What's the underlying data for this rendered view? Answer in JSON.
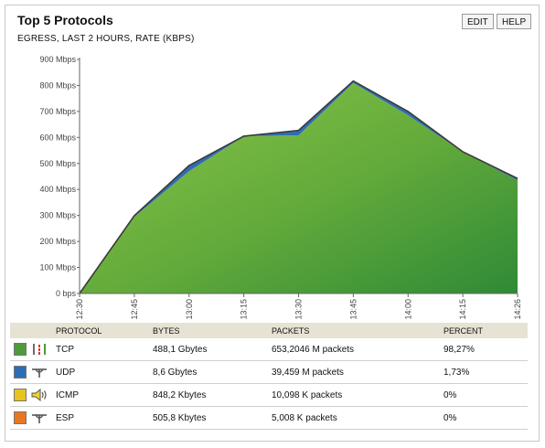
{
  "header": {
    "title": "Top 5 Protocols",
    "subtitle": "EGRESS, LAST 2 HOURS, RATE (KBPS)",
    "edit_label": "EDIT",
    "help_label": "HELP"
  },
  "chart_data": {
    "type": "area",
    "title": "Top 5 Protocols",
    "subtitle": "EGRESS, LAST 2 HOURS, RATE (KBPS)",
    "x": [
      "12:30",
      "12:45",
      "13:00",
      "13:15",
      "13:30",
      "13:45",
      "14:00",
      "14:15",
      "14:26"
    ],
    "ylim": [
      0,
      900
    ],
    "yticks": [
      0,
      100,
      200,
      300,
      400,
      500,
      600,
      700,
      800,
      900
    ],
    "ytick_labels": [
      "0 bps",
      "100 Mbps",
      "200 Mbps",
      "300 Mbps",
      "400 Mbps",
      "500 Mbps",
      "600 Mbps",
      "700 Mbps",
      "800 Mbps",
      "900 Mbps"
    ],
    "stacked": true,
    "grid": false,
    "series": [
      {
        "name": "TCP",
        "color": "#5a9e33",
        "values": [
          0,
          295,
          470,
          605,
          608,
          810,
          685,
          545,
          435
        ]
      },
      {
        "name": "UDP",
        "color": "#2f6db3",
        "values": [
          0,
          4,
          20,
          0,
          17,
          5,
          13,
          0,
          5
        ]
      },
      {
        "name": "ICMP",
        "color": "#e8c21e",
        "values": [
          0,
          0,
          1,
          0,
          1,
          1,
          1,
          0,
          1
        ]
      },
      {
        "name": "ESP",
        "color": "#e87722",
        "values": [
          0,
          0,
          1,
          0,
          1,
          1,
          1,
          0,
          1
        ]
      }
    ]
  },
  "table": {
    "headers": {
      "protocol": "PROTOCOL",
      "bytes": "BYTES",
      "packets": "PACKETS",
      "percent": "PERCENT"
    },
    "rows": [
      {
        "icon": "tcp-icon",
        "color": "#4f9a3a",
        "protocol": "TCP",
        "bytes": "488,1 Gbytes",
        "packets": "653,2046 M packets",
        "percent": "98,27%"
      },
      {
        "icon": "udp-icon",
        "color": "#2f6db3",
        "protocol": "UDP",
        "bytes": "8,6 Gbytes",
        "packets": "39,459 M packets",
        "percent": "1,73%"
      },
      {
        "icon": "icmp-icon",
        "color": "#e8c21e",
        "protocol": "ICMP",
        "bytes": "848,2 Kbytes",
        "packets": "10,098 K packets",
        "percent": "0%"
      },
      {
        "icon": "esp-icon",
        "color": "#e87722",
        "protocol": "ESP",
        "bytes": "505,8 Kbytes",
        "packets": "5,008 K packets",
        "percent": "0%"
      }
    ]
  }
}
